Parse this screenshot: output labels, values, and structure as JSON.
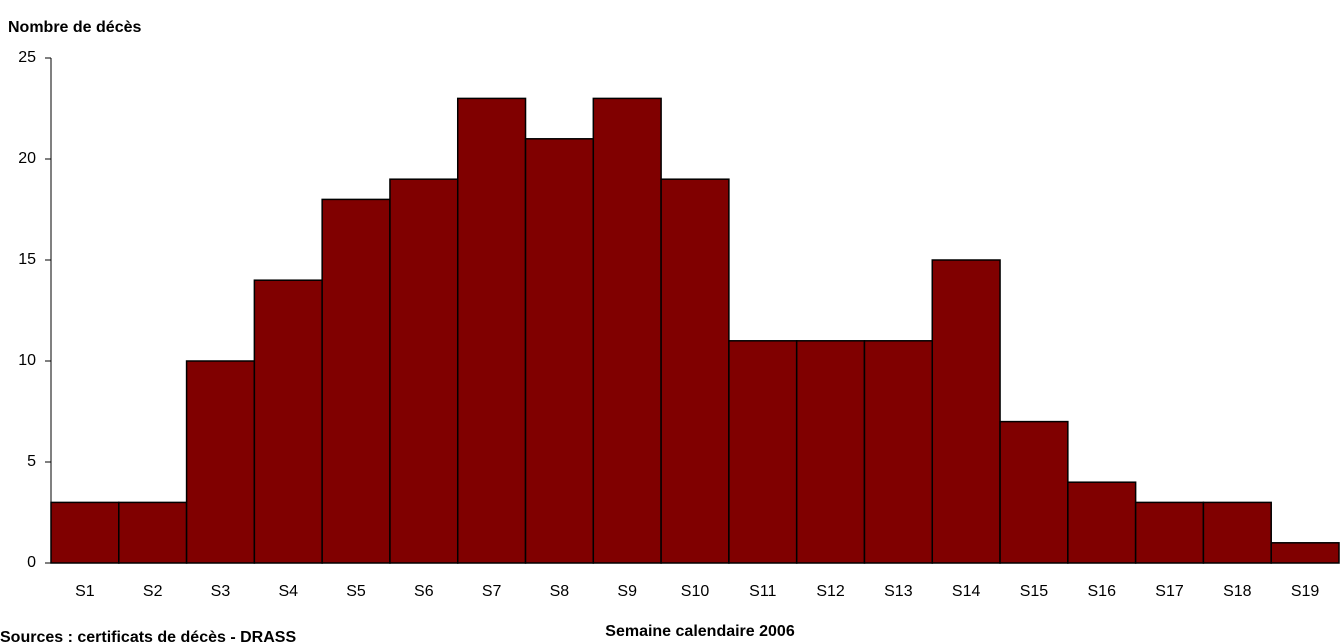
{
  "chart_data": {
    "type": "bar",
    "y_label": "Nombre de décès",
    "x_label": "Semaine calendaire 2006",
    "note": "Sources : certificats de décès - DRASS",
    "categories": [
      "S1",
      "S2",
      "S3",
      "S4",
      "S5",
      "S6",
      "S7",
      "S8",
      "S9",
      "S10",
      "S11",
      "S12",
      "S13",
      "S14",
      "S15",
      "S16",
      "S17",
      "S18",
      "S19"
    ],
    "values": [
      3,
      3,
      10,
      14,
      18,
      19,
      23,
      21,
      23,
      19,
      11,
      11,
      11,
      15,
      7,
      4,
      3,
      3,
      1
    ],
    "color": "#800000",
    "ylim": [
      0,
      25
    ],
    "yticks": [
      0,
      5,
      10,
      15,
      20,
      25
    ],
    "grid": false
  }
}
